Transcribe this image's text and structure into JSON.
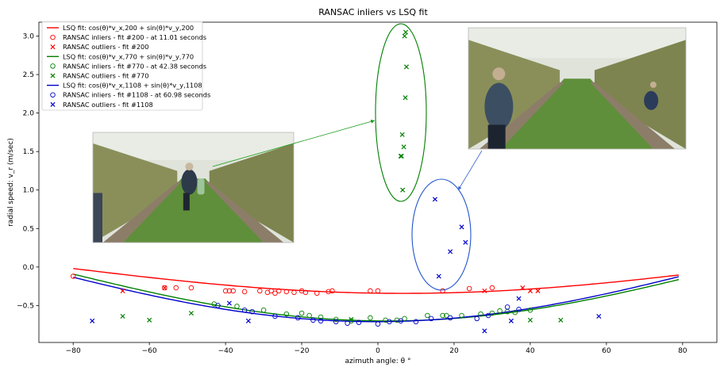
{
  "chart_data": {
    "type": "scatter",
    "title": "RANSAC inliers vs LSQ fit",
    "xlabel": "azimuth angle: θ °",
    "ylabel": "radial speed: v_r (m/sec)",
    "xlim": [
      -89,
      89
    ],
    "ylim": [
      -0.98,
      3.18
    ],
    "xticks": [
      "−80",
      "−60",
      "−40",
      "−20",
      "0",
      "20",
      "40",
      "60",
      "80"
    ],
    "xtick_values": [
      -80,
      -60,
      -40,
      -20,
      0,
      20,
      40,
      60,
      80
    ],
    "yticks": [
      "−0.5",
      "0.0",
      "0.5",
      "1.0",
      "1.5",
      "2.0",
      "2.5",
      "3.0"
    ],
    "ytick_values": [
      -0.5,
      0.0,
      0.5,
      1.0,
      1.5,
      2.0,
      2.5,
      3.0
    ],
    "legend_position": "top-left",
    "fit_curves": [
      {
        "name": "LSQ fit: cos(θ)*v_x,200 + sin(θ)*v_y,200",
        "color": "#ff0000",
        "x_range": [
          -80,
          79
        ],
        "vx": -0.34,
        "vy": -0.04,
        "samples": [
          [
            -80,
            -0.11
          ],
          [
            -60,
            -0.24
          ],
          [
            -40,
            -0.29
          ],
          [
            -20,
            -0.33
          ],
          [
            0,
            -0.34
          ],
          [
            20,
            -0.32
          ],
          [
            40,
            -0.23
          ],
          [
            60,
            -0.12
          ],
          [
            79,
            0.02
          ]
        ]
      },
      {
        "name": "LSQ fit: cos(θ)*v_x,770 + sin(θ)*v_y,770",
        "color": "#008000",
        "x_range": [
          -80,
          79
        ],
        "vx": -0.7,
        "vy": -0.03,
        "samples": [
          [
            -80,
            -0.09
          ],
          [
            -60,
            -0.33
          ],
          [
            -40,
            -0.52
          ],
          [
            -20,
            -0.64
          ],
          [
            0,
            -0.7
          ],
          [
            20,
            -0.67
          ],
          [
            40,
            -0.56
          ],
          [
            60,
            -0.38
          ],
          [
            79,
            -0.16
          ]
        ]
      },
      {
        "name": "LSQ fit: cos(θ)*v_x,1108 + sin(θ)*v_y,1108",
        "color": "#0000cc",
        "x_range": [
          -80,
          79
        ],
        "vx": -0.71,
        "vy": 0.01,
        "samples": [
          [
            -80,
            -0.12
          ],
          [
            -60,
            -0.37
          ],
          [
            -40,
            -0.55
          ],
          [
            -20,
            -0.66
          ],
          [
            0,
            -0.71
          ],
          [
            20,
            -0.66
          ],
          [
            40,
            -0.53
          ],
          [
            60,
            -0.35
          ],
          [
            79,
            -0.14
          ]
        ]
      }
    ],
    "series": [
      {
        "name": "RANSAC inliers - fit #200 - at 11.01 seconds",
        "marker": "o",
        "color": "#ff0000",
        "points": [
          [
            -80,
            -0.12
          ],
          [
            -56,
            -0.27
          ],
          [
            -53,
            -0.27
          ],
          [
            -49,
            -0.27
          ],
          [
            -40,
            -0.31
          ],
          [
            -39,
            -0.31
          ],
          [
            -38,
            -0.31
          ],
          [
            -35,
            -0.32
          ],
          [
            -31,
            -0.31
          ],
          [
            -29,
            -0.33
          ],
          [
            -28,
            -0.31
          ],
          [
            -27,
            -0.34
          ],
          [
            -26,
            -0.31
          ],
          [
            -24,
            -0.32
          ],
          [
            -22,
            -0.33
          ],
          [
            -20,
            -0.31
          ],
          [
            -19,
            -0.33
          ],
          [
            -16,
            -0.34
          ],
          [
            -13,
            -0.32
          ],
          [
            -12,
            -0.31
          ],
          [
            -2,
            -0.31
          ],
          [
            0,
            -0.31
          ],
          [
            17,
            -0.31
          ],
          [
            24,
            -0.28
          ],
          [
            30,
            -0.27
          ]
        ]
      },
      {
        "name": "RANSAC outliers - fit #200",
        "marker": "x",
        "color": "#ff0000",
        "points": [
          [
            -67,
            -0.31
          ],
          [
            -56,
            -0.27
          ],
          [
            28,
            -0.31
          ],
          [
            38,
            -0.27
          ],
          [
            40,
            -0.31
          ],
          [
            42,
            -0.31
          ]
        ]
      },
      {
        "name": "RANSAC inliers - fit #770 - at 42.38 seconds",
        "marker": "o",
        "color": "#008000",
        "points": [
          [
            -43,
            -0.48
          ],
          [
            -37,
            -0.51
          ],
          [
            -30,
            -0.56
          ],
          [
            -24,
            -0.61
          ],
          [
            -20,
            -0.6
          ],
          [
            -18,
            -0.63
          ],
          [
            -15,
            -0.65
          ],
          [
            -11,
            -0.68
          ],
          [
            -7,
            -0.7
          ],
          [
            -2,
            -0.66
          ],
          [
            2,
            -0.69
          ],
          [
            5,
            -0.69
          ],
          [
            7,
            -0.67
          ],
          [
            13,
            -0.63
          ],
          [
            17,
            -0.63
          ],
          [
            18,
            -0.63
          ],
          [
            22,
            -0.63
          ],
          [
            27,
            -0.61
          ],
          [
            30,
            -0.6
          ],
          [
            32,
            -0.57
          ],
          [
            34,
            -0.58
          ],
          [
            36,
            -0.59
          ],
          [
            40,
            -0.56
          ]
        ]
      },
      {
        "name": "RANSAC outliers - fit #770",
        "marker": "x",
        "color": "#008000",
        "points": [
          [
            -67,
            -0.64
          ],
          [
            -60,
            -0.69
          ],
          [
            -49,
            -0.6
          ],
          [
            -7,
            -0.68
          ],
          [
            6.5,
            1.0
          ],
          [
            6.2,
            1.44
          ],
          [
            6.8,
            1.56
          ],
          [
            6.4,
            1.72
          ],
          [
            6.0,
            1.44
          ],
          [
            7.2,
            2.2
          ],
          [
            7.5,
            2.6
          ],
          [
            7.0,
            3.0
          ],
          [
            7.3,
            3.05
          ],
          [
            40,
            -0.69
          ],
          [
            48,
            -0.69
          ]
        ]
      },
      {
        "name": "RANSAC inliers - fit #1108 - at 60.98 seconds",
        "marker": "o",
        "color": "#0000cc",
        "points": [
          [
            -42,
            -0.5
          ],
          [
            -35,
            -0.56
          ],
          [
            -33,
            -0.58
          ],
          [
            -27,
            -0.64
          ],
          [
            -21,
            -0.66
          ],
          [
            -17,
            -0.69
          ],
          [
            -15,
            -0.7
          ],
          [
            -11,
            -0.71
          ],
          [
            -8,
            -0.73
          ],
          [
            -5,
            -0.72
          ],
          [
            0,
            -0.74
          ],
          [
            3,
            -0.71
          ],
          [
            6,
            -0.7
          ],
          [
            10,
            -0.71
          ],
          [
            14,
            -0.67
          ],
          [
            19,
            -0.66
          ],
          [
            26,
            -0.67
          ],
          [
            29,
            -0.63
          ],
          [
            34,
            -0.52
          ],
          [
            37,
            -0.55
          ]
        ]
      },
      {
        "name": "RANSAC outliers - fit #1108",
        "marker": "x",
        "color": "#0000cc",
        "points": [
          [
            -75,
            -0.7
          ],
          [
            -39,
            -0.47
          ],
          [
            -34,
            -0.7
          ],
          [
            15,
            0.88
          ],
          [
            16,
            -0.12
          ],
          [
            19,
            0.2
          ],
          [
            22,
            0.52
          ],
          [
            23,
            0.32
          ],
          [
            28,
            -0.83
          ],
          [
            35,
            -0.7
          ],
          [
            37,
            -0.41
          ],
          [
            58,
            -0.64
          ]
        ]
      }
    ],
    "annotations": [
      {
        "type": "photo",
        "subject": "person walking in orchard carrying watering can",
        "arrow_to": "green outlier ellipse"
      },
      {
        "type": "photo",
        "subject": "person in orchard with another person crouching",
        "arrow_to": "blue outlier ellipse"
      },
      {
        "type": "ellipse",
        "color": "#008000"
      },
      {
        "type": "ellipse",
        "color": "#2255cc"
      }
    ]
  }
}
